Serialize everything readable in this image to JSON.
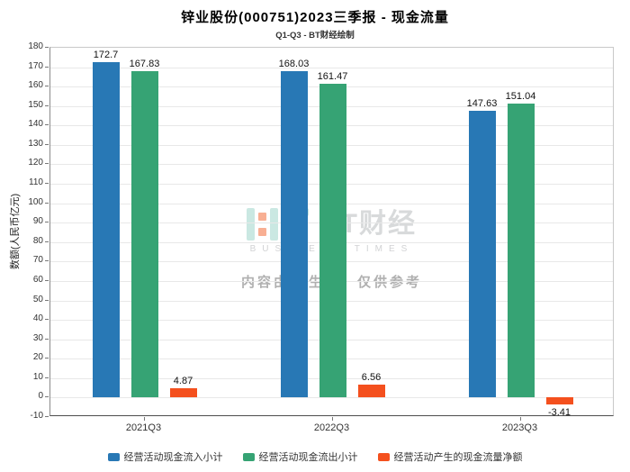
{
  "chart_data": {
    "type": "bar",
    "title": "锌业股份(000751)2023三季报 - 现金流量",
    "subtitle": "Q1-Q3 - BT财经绘制",
    "ylabel": "数额(人民币亿元)",
    "categories": [
      "2021Q3",
      "2022Q3",
      "2023Q3"
    ],
    "series": [
      {
        "name": "经营活动现金流入小计",
        "color": "#2878b5",
        "values": [
          172.7,
          168.03,
          147.63
        ]
      },
      {
        "name": "经营活动现金流出小计",
        "color": "#36a374",
        "values": [
          167.83,
          161.47,
          151.04
        ]
      },
      {
        "name": "经营活动产生的现金流量净额",
        "color": "#f4501e",
        "values": [
          4.87,
          6.56,
          -3.41
        ]
      }
    ],
    "ylim": [
      -10,
      180
    ],
    "ytick_step": 10,
    "grid": true,
    "legend_position": "bottom"
  },
  "watermark": {
    "logo_text": "BT财经",
    "logo_sub": "BUSINESS TIMES",
    "note": "内容由AI生成，仅供参考"
  }
}
